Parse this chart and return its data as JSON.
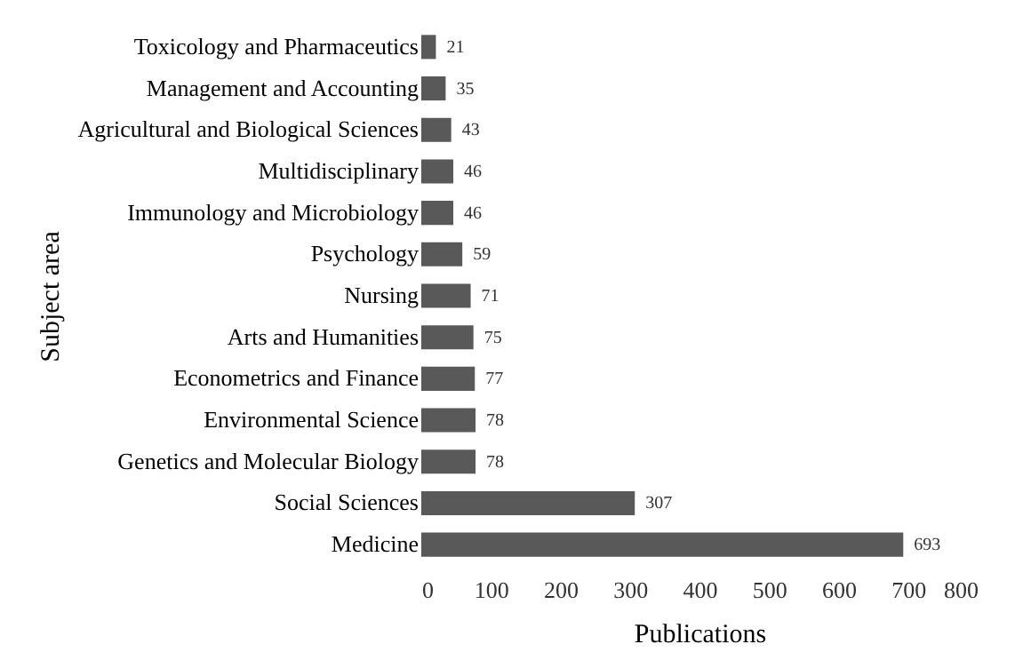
{
  "chart_data": {
    "type": "bar",
    "orientation": "horizontal",
    "xlabel": "Publications",
    "ylabel": "Subject area",
    "categories": [
      "Toxicology and Pharmaceutics",
      "Management and Accounting",
      "Agricultural and Biological Sciences",
      "Multidisciplinary",
      "Immunology and Microbiology",
      "Psychology",
      "Nursing",
      "Arts and Humanities",
      "Econometrics and Finance",
      "Environmental Science",
      "Genetics and Molecular Biology",
      "Social Sciences",
      "Medicine"
    ],
    "values": [
      21,
      35,
      43,
      46,
      46,
      59,
      71,
      75,
      77,
      78,
      78,
      307,
      693
    ],
    "color": "#595959",
    "xlim": [
      0,
      800
    ],
    "xticks": [
      0,
      100,
      200,
      300,
      400,
      500,
      600,
      700,
      800
    ],
    "data_labels": true,
    "grid": false,
    "legend": false
  }
}
